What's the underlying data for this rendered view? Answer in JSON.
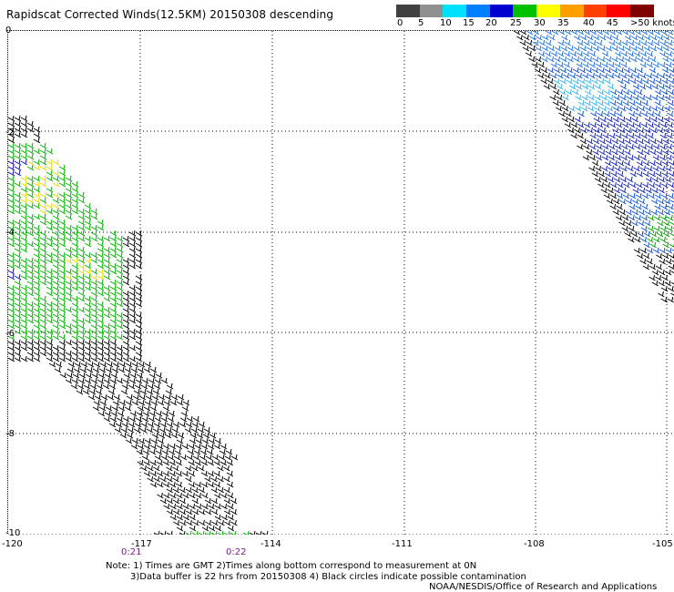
{
  "title": "Rapidscat Corrected Winds(12.5KM) 20150308 descending",
  "legend": {
    "labels": [
      "0",
      "5",
      "10",
      "15",
      "20",
      "25",
      "30",
      "35",
      "40",
      "45",
      ">50 knots"
    ],
    "colors": [
      "#404040",
      "#909090",
      "#00e0ff",
      "#0080ff",
      "#0000d0",
      "#00c000",
      "#ffff00",
      "#ffa000",
      "#ff4000",
      "#ff0000",
      "#800000"
    ]
  },
  "lat_labels": [
    "0",
    "-2",
    "-4",
    "-6",
    "-8",
    "-10"
  ],
  "lon_labels": [
    "-120",
    "-117",
    "-114",
    "-111",
    "-108",
    "-105"
  ],
  "time_labels": [
    "0:21",
    "0:22"
  ],
  "notes": [
    "Note: 1) Times are GMT 2)Times along bottom correspond to measurement at 0N",
    "3)Data buffer is 22 hrs from 20150308 4) Black circles indicate possible contamination",
    "NOAA/NESDIS/Office of Research and Applications"
  ],
  "map": {
    "lon_range": [
      -120,
      -105
    ],
    "lat_range": [
      -10,
      0
    ],
    "swaths": [
      {
        "name": "west",
        "color_zones": [
          "black",
          "green",
          "yellow",
          "blue"
        ]
      },
      {
        "name": "east",
        "color_zones": [
          "blue",
          "cyan",
          "green",
          "black"
        ]
      }
    ]
  }
}
